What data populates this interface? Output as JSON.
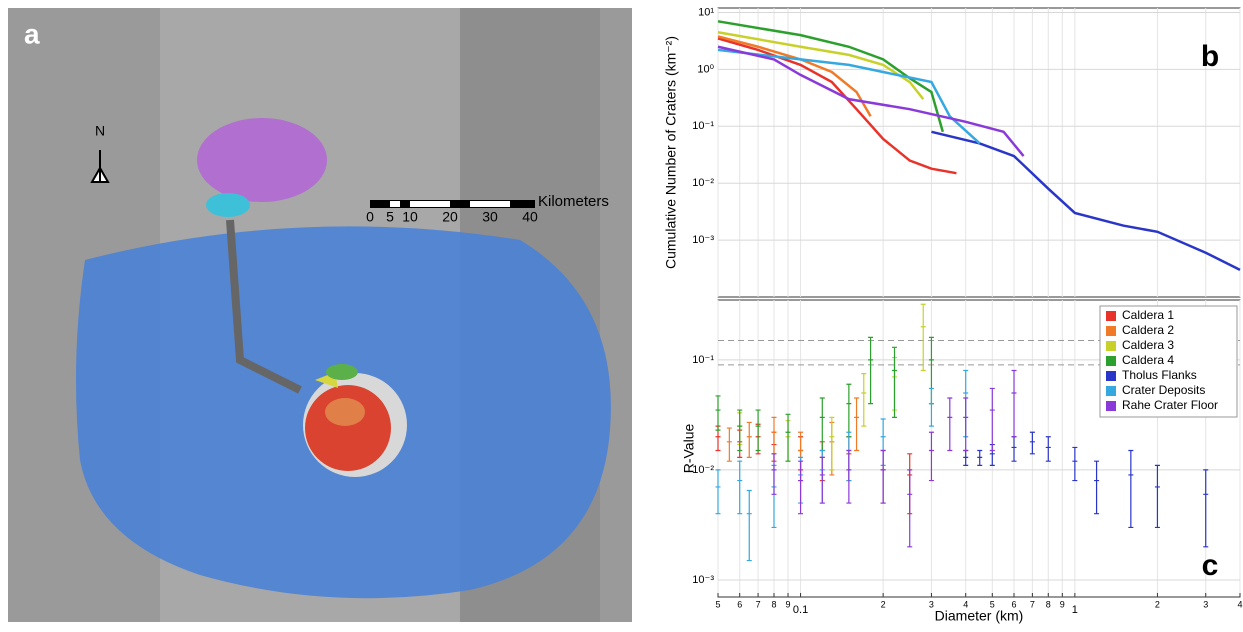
{
  "map": {
    "label": "a",
    "north": "N",
    "scale_unit": "Kilometers",
    "scale_ticks": [
      "0",
      "5",
      "10",
      "20",
      "30",
      "40"
    ]
  },
  "chart_data": [
    {
      "type": "line",
      "panel": "b",
      "ylabel": "Cumulative Number of Craters (km⁻²)",
      "xlim": [
        0.05,
        4
      ],
      "ylim": [
        0.0001,
        12
      ],
      "log_x": true,
      "log_y": true,
      "grid": true,
      "yticks": [
        {
          "value": 10,
          "label": "10¹"
        },
        {
          "value": 1,
          "label": "10⁰"
        },
        {
          "value": 0.1,
          "label": "10⁻¹"
        },
        {
          "value": 0.01,
          "label": "10⁻²"
        },
        {
          "value": 0.001,
          "label": "10⁻³"
        }
      ],
      "series": [
        {
          "color": "#e8332a",
          "x": [
            0.05,
            0.07,
            0.1,
            0.13,
            0.16,
            0.2,
            0.25,
            0.3,
            0.37
          ],
          "values": [
            3.5,
            2.2,
            1.2,
            0.6,
            0.2,
            0.06,
            0.025,
            0.018,
            0.015
          ]
        },
        {
          "color": "#f07a28",
          "x": [
            0.05,
            0.07,
            0.1,
            0.13,
            0.16,
            0.18
          ],
          "values": [
            3.8,
            2.5,
            1.5,
            0.9,
            0.4,
            0.15
          ]
        },
        {
          "color": "#c8d12a",
          "x": [
            0.05,
            0.1,
            0.15,
            0.2,
            0.25,
            0.28
          ],
          "values": [
            4.5,
            2.5,
            1.8,
            1.2,
            0.6,
            0.3
          ]
        },
        {
          "color": "#2ca02c",
          "x": [
            0.05,
            0.1,
            0.15,
            0.2,
            0.25,
            0.3,
            0.33
          ],
          "values": [
            7,
            4,
            2.5,
            1.5,
            0.7,
            0.4,
            0.08
          ]
        },
        {
          "color": "#2a36c8",
          "x": [
            0.3,
            0.45,
            0.6,
            0.8,
            1,
            1.5,
            2,
            3,
            4
          ],
          "values": [
            0.08,
            0.05,
            0.03,
            0.008,
            0.003,
            0.0018,
            0.0014,
            0.0006,
            0.0003
          ]
        },
        {
          "color": "#36a8e0",
          "x": [
            0.05,
            0.1,
            0.15,
            0.2,
            0.3,
            0.35,
            0.45
          ],
          "values": [
            2.2,
            1.5,
            1.2,
            0.9,
            0.6,
            0.15,
            0.05
          ]
        },
        {
          "color": "#8a3ad8",
          "x": [
            0.05,
            0.08,
            0.1,
            0.15,
            0.25,
            0.4,
            0.55,
            0.65
          ],
          "values": [
            2.5,
            1.5,
            0.8,
            0.3,
            0.2,
            0.12,
            0.08,
            0.03
          ]
        }
      ]
    },
    {
      "type": "errorbar",
      "panel": "c",
      "ylabel": "R-Value",
      "xlabel": "Diameter (km)",
      "xlim": [
        0.05,
        4
      ],
      "ylim": [
        0.0007,
        0.35
      ],
      "log_x": true,
      "log_y": true,
      "grid": true,
      "legend": "upper right",
      "reference_lines": [
        0.15,
        0.09
      ],
      "xticks": [
        {
          "value": 0.05,
          "label": "5"
        },
        {
          "value": 0.06,
          "label": "6"
        },
        {
          "value": 0.07,
          "label": "7"
        },
        {
          "value": 0.08,
          "label": "8"
        },
        {
          "value": 0.09,
          "label": "9"
        },
        0.1,
        {
          "value": 0.2,
          "label": "2"
        },
        {
          "value": 0.3,
          "label": "3"
        },
        {
          "value": 0.4,
          "label": "4"
        },
        {
          "value": 0.5,
          "label": "5"
        },
        {
          "value": 0.6,
          "label": "6"
        },
        {
          "value": 0.7,
          "label": "7"
        },
        {
          "value": 0.8,
          "label": "8"
        },
        {
          "value": 0.9,
          "label": "9"
        },
        1,
        2,
        3,
        4
      ],
      "yticks": [
        {
          "value": 0.1,
          "label": "10⁻¹"
        },
        {
          "value": 0.01,
          "label": "10⁻²"
        },
        {
          "value": 0.001,
          "label": "10⁻³"
        }
      ],
      "series": [
        {
          "name": "Caldera 1",
          "color": "#e8332a",
          "x": [
            0.05,
            0.06,
            0.07,
            0.08,
            0.1,
            0.12,
            0.15,
            0.2,
            0.25
          ],
          "values": [
            0.02,
            0.018,
            0.02,
            0.017,
            0.015,
            0.013,
            0.014,
            0.01,
            0.009
          ],
          "errors": [
            0.005,
            0.005,
            0.006,
            0.005,
            0.005,
            0.005,
            0.006,
            0.005,
            0.005
          ]
        },
        {
          "name": "Caldera 2",
          "color": "#f07a28",
          "x": [
            0.055,
            0.065,
            0.08,
            0.1,
            0.13,
            0.16
          ],
          "values": [
            0.018,
            0.02,
            0.022,
            0.015,
            0.018,
            0.03
          ],
          "errors": [
            0.006,
            0.007,
            0.008,
            0.007,
            0.009,
            0.015
          ]
        },
        {
          "name": "Caldera 3",
          "color": "#c8d12a",
          "x": [
            0.06,
            0.09,
            0.13,
            0.17,
            0.22,
            0.28
          ],
          "values": [
            0.025,
            0.02,
            0.02,
            0.05,
            0.07,
            0.2
          ],
          "errors": [
            0.008,
            0.008,
            0.01,
            0.025,
            0.035,
            0.12
          ]
        },
        {
          "name": "Caldera 4",
          "color": "#2ca02c",
          "x": [
            0.05,
            0.06,
            0.07,
            0.09,
            0.12,
            0.15,
            0.18,
            0.22,
            0.3
          ],
          "values": [
            0.035,
            0.025,
            0.025,
            0.022,
            0.03,
            0.04,
            0.1,
            0.08,
            0.1
          ],
          "errors": [
            0.012,
            0.01,
            0.01,
            0.01,
            0.015,
            0.02,
            0.06,
            0.05,
            0.06
          ]
        },
        {
          "name": "Tholus Flanks",
          "color": "#2a36c8",
          "x": [
            0.4,
            0.45,
            0.5,
            0.6,
            0.7,
            0.8,
            1,
            1.2,
            1.6,
            2,
            3
          ],
          "values": [
            0.013,
            0.013,
            0.014,
            0.016,
            0.018,
            0.016,
            0.012,
            0.008,
            0.009,
            0.007,
            0.006
          ],
          "errors": [
            0.002,
            0.002,
            0.003,
            0.004,
            0.004,
            0.004,
            0.004,
            0.004,
            0.006,
            0.004,
            0.004
          ]
        },
        {
          "name": "Crater Deposits",
          "color": "#36a8e0",
          "x": [
            0.05,
            0.06,
            0.065,
            0.08,
            0.1,
            0.12,
            0.15,
            0.2,
            0.3,
            0.4
          ],
          "values": [
            0.007,
            0.008,
            0.004,
            0.007,
            0.009,
            0.01,
            0.015,
            0.02,
            0.04,
            0.05
          ],
          "errors": [
            0.003,
            0.004,
            0.0025,
            0.004,
            0.004,
            0.005,
            0.007,
            0.009,
            0.015,
            0.03
          ]
        },
        {
          "name": "Rahe Crater Floor",
          "color": "#8a3ad8",
          "x": [
            0.08,
            0.1,
            0.12,
            0.15,
            0.2,
            0.25,
            0.3,
            0.35,
            0.4,
            0.5,
            0.6
          ],
          "values": [
            0.01,
            0.008,
            0.009,
            0.01,
            0.01,
            0.006,
            0.015,
            0.03,
            0.03,
            0.035,
            0.05
          ],
          "errors": [
            0.004,
            0.004,
            0.004,
            0.005,
            0.005,
            0.004,
            0.007,
            0.015,
            0.015,
            0.02,
            0.03
          ]
        }
      ]
    }
  ]
}
